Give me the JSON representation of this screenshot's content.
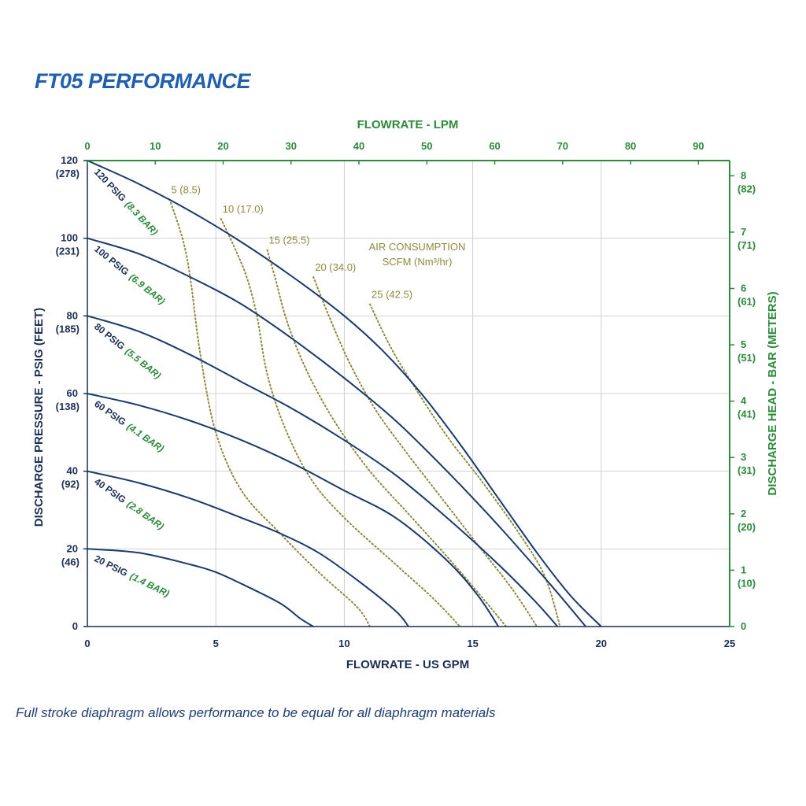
{
  "title": "FT05 PERFORMANCE",
  "footnote": "Full stroke diaphragm allows performance to be equal for all diaphragm materials",
  "colors": {
    "title": "#1f5fae",
    "curve": "#1a3a6b",
    "air": "#8c8a3e",
    "green": "#2d8a3a",
    "grid": "#d0d0d0"
  },
  "chart_data": {
    "type": "line",
    "xlabel": "FLOWRATE - US GPM",
    "x2label": "FLOWRATE - LPM",
    "ylabel": "DISCHARGE PRESSURE - PSIG (FEET)",
    "y2label": "DISCHARGE HEAD - BAR (METERS)",
    "xlim": [
      0,
      25
    ],
    "x2lim": [
      0,
      94.6
    ],
    "ylim": [
      0,
      120
    ],
    "y2lim": [
      0,
      8.27
    ],
    "grid": true,
    "x_ticks": [
      "0",
      "5",
      "10",
      "15",
      "20",
      "25"
    ],
    "x2_ticks": [
      "0",
      "10",
      "20",
      "30",
      "40",
      "50",
      "60",
      "70",
      "80",
      "90"
    ],
    "y_ticks": [
      {
        "value": 0,
        "label": "0",
        "sub": ""
      },
      {
        "value": 20,
        "label": "20",
        "sub": "(46)"
      },
      {
        "value": 40,
        "label": "40",
        "sub": "(92)"
      },
      {
        "value": 60,
        "label": "60",
        "sub": "(138)"
      },
      {
        "value": 80,
        "label": "80",
        "sub": "(185)"
      },
      {
        "value": 100,
        "label": "100",
        "sub": "(231)"
      },
      {
        "value": 120,
        "label": "120",
        "sub": "(278)"
      }
    ],
    "y2_ticks": [
      {
        "value": 0,
        "label": "0",
        "sub": ""
      },
      {
        "value": 1,
        "label": "1",
        "sub": "(10)"
      },
      {
        "value": 2,
        "label": "2",
        "sub": "(20)"
      },
      {
        "value": 3,
        "label": "3",
        "sub": "(31)"
      },
      {
        "value": 4,
        "label": "4",
        "sub": "(41)"
      },
      {
        "value": 5,
        "label": "5",
        "sub": "(51)"
      },
      {
        "value": 6,
        "label": "6",
        "sub": "(61)"
      },
      {
        "value": 7,
        "label": "7",
        "sub": "(71)"
      },
      {
        "value": 8,
        "label": "8",
        "sub": "(82)"
      }
    ],
    "series": [
      {
        "label_a": "120 PSIG",
        "label_b": "(8.3 BAR)",
        "points": [
          [
            0,
            120
          ],
          [
            2,
            114
          ],
          [
            4,
            107
          ],
          [
            6,
            99
          ],
          [
            8,
            90
          ],
          [
            10,
            80
          ],
          [
            11.5,
            71
          ],
          [
            13,
            60
          ],
          [
            14.5,
            47
          ],
          [
            16,
            33
          ],
          [
            17.5,
            19
          ],
          [
            18.8,
            8
          ],
          [
            20,
            0
          ]
        ]
      },
      {
        "label_a": "100 PSIG",
        "label_b": "(6.9 BAR)",
        "points": [
          [
            0,
            100
          ],
          [
            2,
            96
          ],
          [
            4,
            90
          ],
          [
            6,
            83
          ],
          [
            8,
            74
          ],
          [
            10,
            64
          ],
          [
            12,
            53
          ],
          [
            14,
            40
          ],
          [
            16,
            26
          ],
          [
            18,
            11
          ],
          [
            19.4,
            0
          ]
        ]
      },
      {
        "label_a": "80 PSIG",
        "label_b": "(5.5 BAR)",
        "points": [
          [
            0,
            80
          ],
          [
            2,
            76
          ],
          [
            4,
            70
          ],
          [
            6,
            63
          ],
          [
            8,
            56
          ],
          [
            10,
            48
          ],
          [
            12,
            39
          ],
          [
            14,
            28
          ],
          [
            16,
            16
          ],
          [
            17.5,
            6
          ],
          [
            18.3,
            0
          ]
        ]
      },
      {
        "label_a": "60 PSIG",
        "label_b": "(4.1 BAR)",
        "points": [
          [
            0,
            60
          ],
          [
            2,
            57
          ],
          [
            4,
            53
          ],
          [
            6,
            48
          ],
          [
            8,
            42
          ],
          [
            10,
            35
          ],
          [
            12,
            28
          ],
          [
            14,
            17
          ],
          [
            15.2,
            8
          ],
          [
            16,
            0
          ]
        ]
      },
      {
        "label_a": "40 PSIG",
        "label_b": "(2.8 BAR)",
        "points": [
          [
            0,
            40
          ],
          [
            2,
            37
          ],
          [
            4,
            33
          ],
          [
            6,
            28
          ],
          [
            7.5,
            24
          ],
          [
            9,
            19
          ],
          [
            10.5,
            12
          ],
          [
            12,
            4
          ],
          [
            12.5,
            0
          ]
        ]
      },
      {
        "label_a": "20 PSIG",
        "label_b": "(1.4 BAR)",
        "points": [
          [
            0,
            20
          ],
          [
            2,
            19
          ],
          [
            4,
            16
          ],
          [
            5,
            14
          ],
          [
            6,
            11
          ],
          [
            7.5,
            6
          ],
          [
            8.3,
            2
          ],
          [
            8.8,
            0
          ]
        ]
      }
    ],
    "air_title": [
      "AIR CONSUMPTION",
      "SCFM (Nm³/hr)"
    ],
    "air_series": [
      {
        "label": "5 (8.5)",
        "points": [
          [
            3.2,
            110
          ],
          [
            3.7,
            100
          ],
          [
            4,
            90
          ],
          [
            4.4,
            70
          ],
          [
            5,
            50
          ],
          [
            6,
            35
          ],
          [
            7.5,
            24
          ],
          [
            9,
            14
          ],
          [
            10.5,
            5
          ],
          [
            11,
            0
          ]
        ]
      },
      {
        "label": "10 (17.0)",
        "points": [
          [
            5.2,
            105
          ],
          [
            5.7,
            98
          ],
          [
            6.2,
            90
          ],
          [
            6.6,
            80
          ],
          [
            7,
            65
          ],
          [
            7.7,
            51
          ],
          [
            8.7,
            38
          ],
          [
            10,
            28
          ],
          [
            12,
            16
          ],
          [
            13.5,
            7
          ],
          [
            14.5,
            0
          ]
        ]
      },
      {
        "label": "15 (25.5)",
        "points": [
          [
            7,
            97
          ],
          [
            7.3,
            90
          ],
          [
            7.8,
            78
          ],
          [
            8.6,
            65
          ],
          [
            9.7,
            52
          ],
          [
            11,
            40
          ],
          [
            12.5,
            29
          ],
          [
            14,
            18
          ],
          [
            15.3,
            8
          ],
          [
            16.3,
            0
          ]
        ]
      },
      {
        "label": "20 (34.0)",
        "points": [
          [
            8.8,
            90
          ],
          [
            9.4,
            80
          ],
          [
            10.2,
            68
          ],
          [
            11.2,
            56
          ],
          [
            12.4,
            45
          ],
          [
            13.8,
            33
          ],
          [
            15.2,
            21
          ],
          [
            16.5,
            10
          ],
          [
            17.5,
            0
          ]
        ]
      },
      {
        "label": "25 (42.5)",
        "points": [
          [
            11,
            83
          ],
          [
            11.8,
            72
          ],
          [
            12.8,
            61
          ],
          [
            14,
            49
          ],
          [
            15.4,
            37
          ],
          [
            16.8,
            24
          ],
          [
            17.8,
            13
          ],
          [
            18.4,
            0
          ]
        ]
      }
    ]
  }
}
